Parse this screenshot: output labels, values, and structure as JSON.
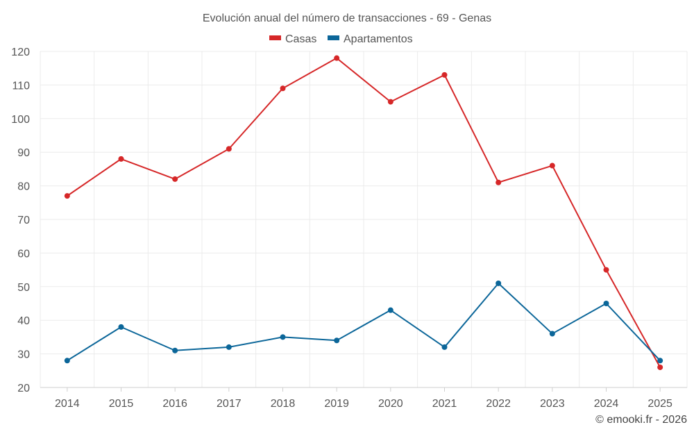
{
  "chart_data": {
    "type": "line",
    "title": "Evolución anual del número de transacciones - 69 - Genas",
    "categories": [
      "2014",
      "2015",
      "2016",
      "2017",
      "2018",
      "2019",
      "2020",
      "2021",
      "2022",
      "2023",
      "2024",
      "2025"
    ],
    "series": [
      {
        "name": "Casas",
        "color": "#d62728",
        "values": [
          77,
          88,
          82,
          91,
          109,
          118,
          105,
          113,
          81,
          86,
          55,
          26
        ]
      },
      {
        "name": "Apartamentos",
        "color": "#0b6699",
        "values": [
          28,
          38,
          31,
          32,
          35,
          34,
          43,
          32,
          51,
          36,
          45,
          28
        ]
      }
    ],
    "ylim": [
      20,
      120
    ],
    "yticks": [
      20,
      30,
      40,
      50,
      60,
      70,
      80,
      90,
      100,
      110,
      120
    ],
    "xlabel": "",
    "ylabel": "",
    "grid": true,
    "legend": "top-center"
  },
  "credit": "© emooki.fr - 2026"
}
